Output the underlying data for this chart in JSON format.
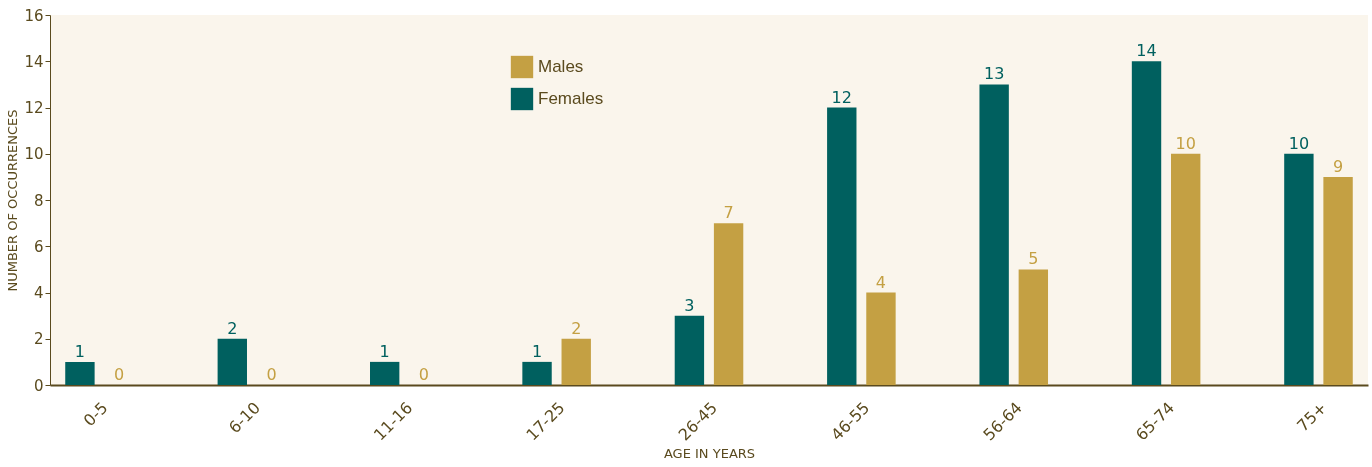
{
  "chart_data": {
    "type": "bar",
    "xlabel": "AGE IN YEARS",
    "ylabel": "NUMBER OF OCCURRENCES",
    "categories": [
      "0-5",
      "6-10",
      "11-16",
      "17-25",
      "26-45",
      "46-55",
      "56-64",
      "65-74",
      "75+"
    ],
    "series": [
      {
        "name": "Females",
        "color": "#00605f",
        "values": [
          1,
          2,
          1,
          1,
          3,
          12,
          13,
          14,
          10
        ]
      },
      {
        "name": "Males",
        "color": "#c4a043",
        "values": [
          0,
          0,
          0,
          2,
          7,
          4,
          5,
          10,
          9
        ]
      }
    ],
    "ylim": [
      0,
      16
    ],
    "yticks": [
      0,
      2,
      4,
      6,
      8,
      10,
      12,
      14,
      16
    ],
    "data_labels": true,
    "legend": "top",
    "grid": false
  }
}
